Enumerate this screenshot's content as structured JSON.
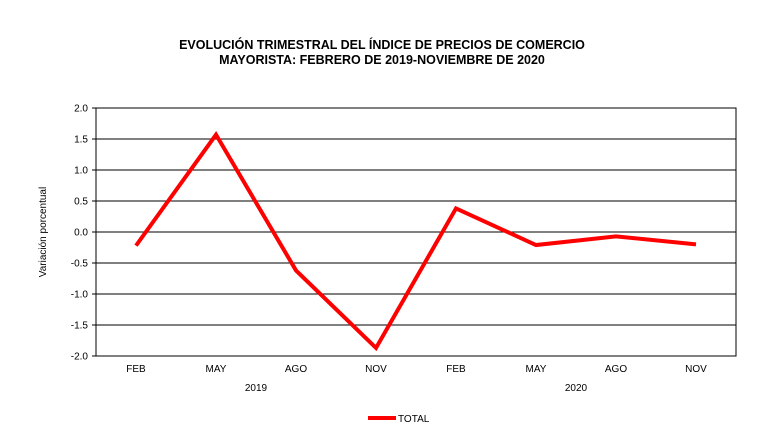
{
  "chart_data": {
    "type": "line",
    "title": [
      "EVOLUCIÓN TRIMESTRAL DEL ÍNDICE DE PRECIOS DE COMERCIO",
      "MAYORISTA: FEBRERO DE 2019-NOVIEMBRE DE 2020"
    ],
    "ylabel": "Variación porcentual",
    "xlabel": "",
    "categories": [
      "FEB",
      "MAY",
      "AGO",
      "NOV",
      "FEB",
      "MAY",
      "AGO",
      "NOV"
    ],
    "year_groups": [
      {
        "label": "2019",
        "span": [
          0,
          3
        ]
      },
      {
        "label": "2020",
        "span": [
          4,
          7
        ]
      }
    ],
    "ylim": [
      -2.0,
      2.0
    ],
    "yticks": [
      "2.0",
      "1.5",
      "1.0",
      "0.5",
      "0.0",
      "-0.5",
      "-1.0",
      "-1.5",
      "-2.0"
    ],
    "grid": true,
    "legend_position": "bottom",
    "series": [
      {
        "name": "TOTAL",
        "color": "#ff0000",
        "values": [
          -0.22,
          1.57,
          -0.62,
          -1.87,
          0.38,
          -0.21,
          -0.07,
          -0.2
        ]
      }
    ]
  }
}
